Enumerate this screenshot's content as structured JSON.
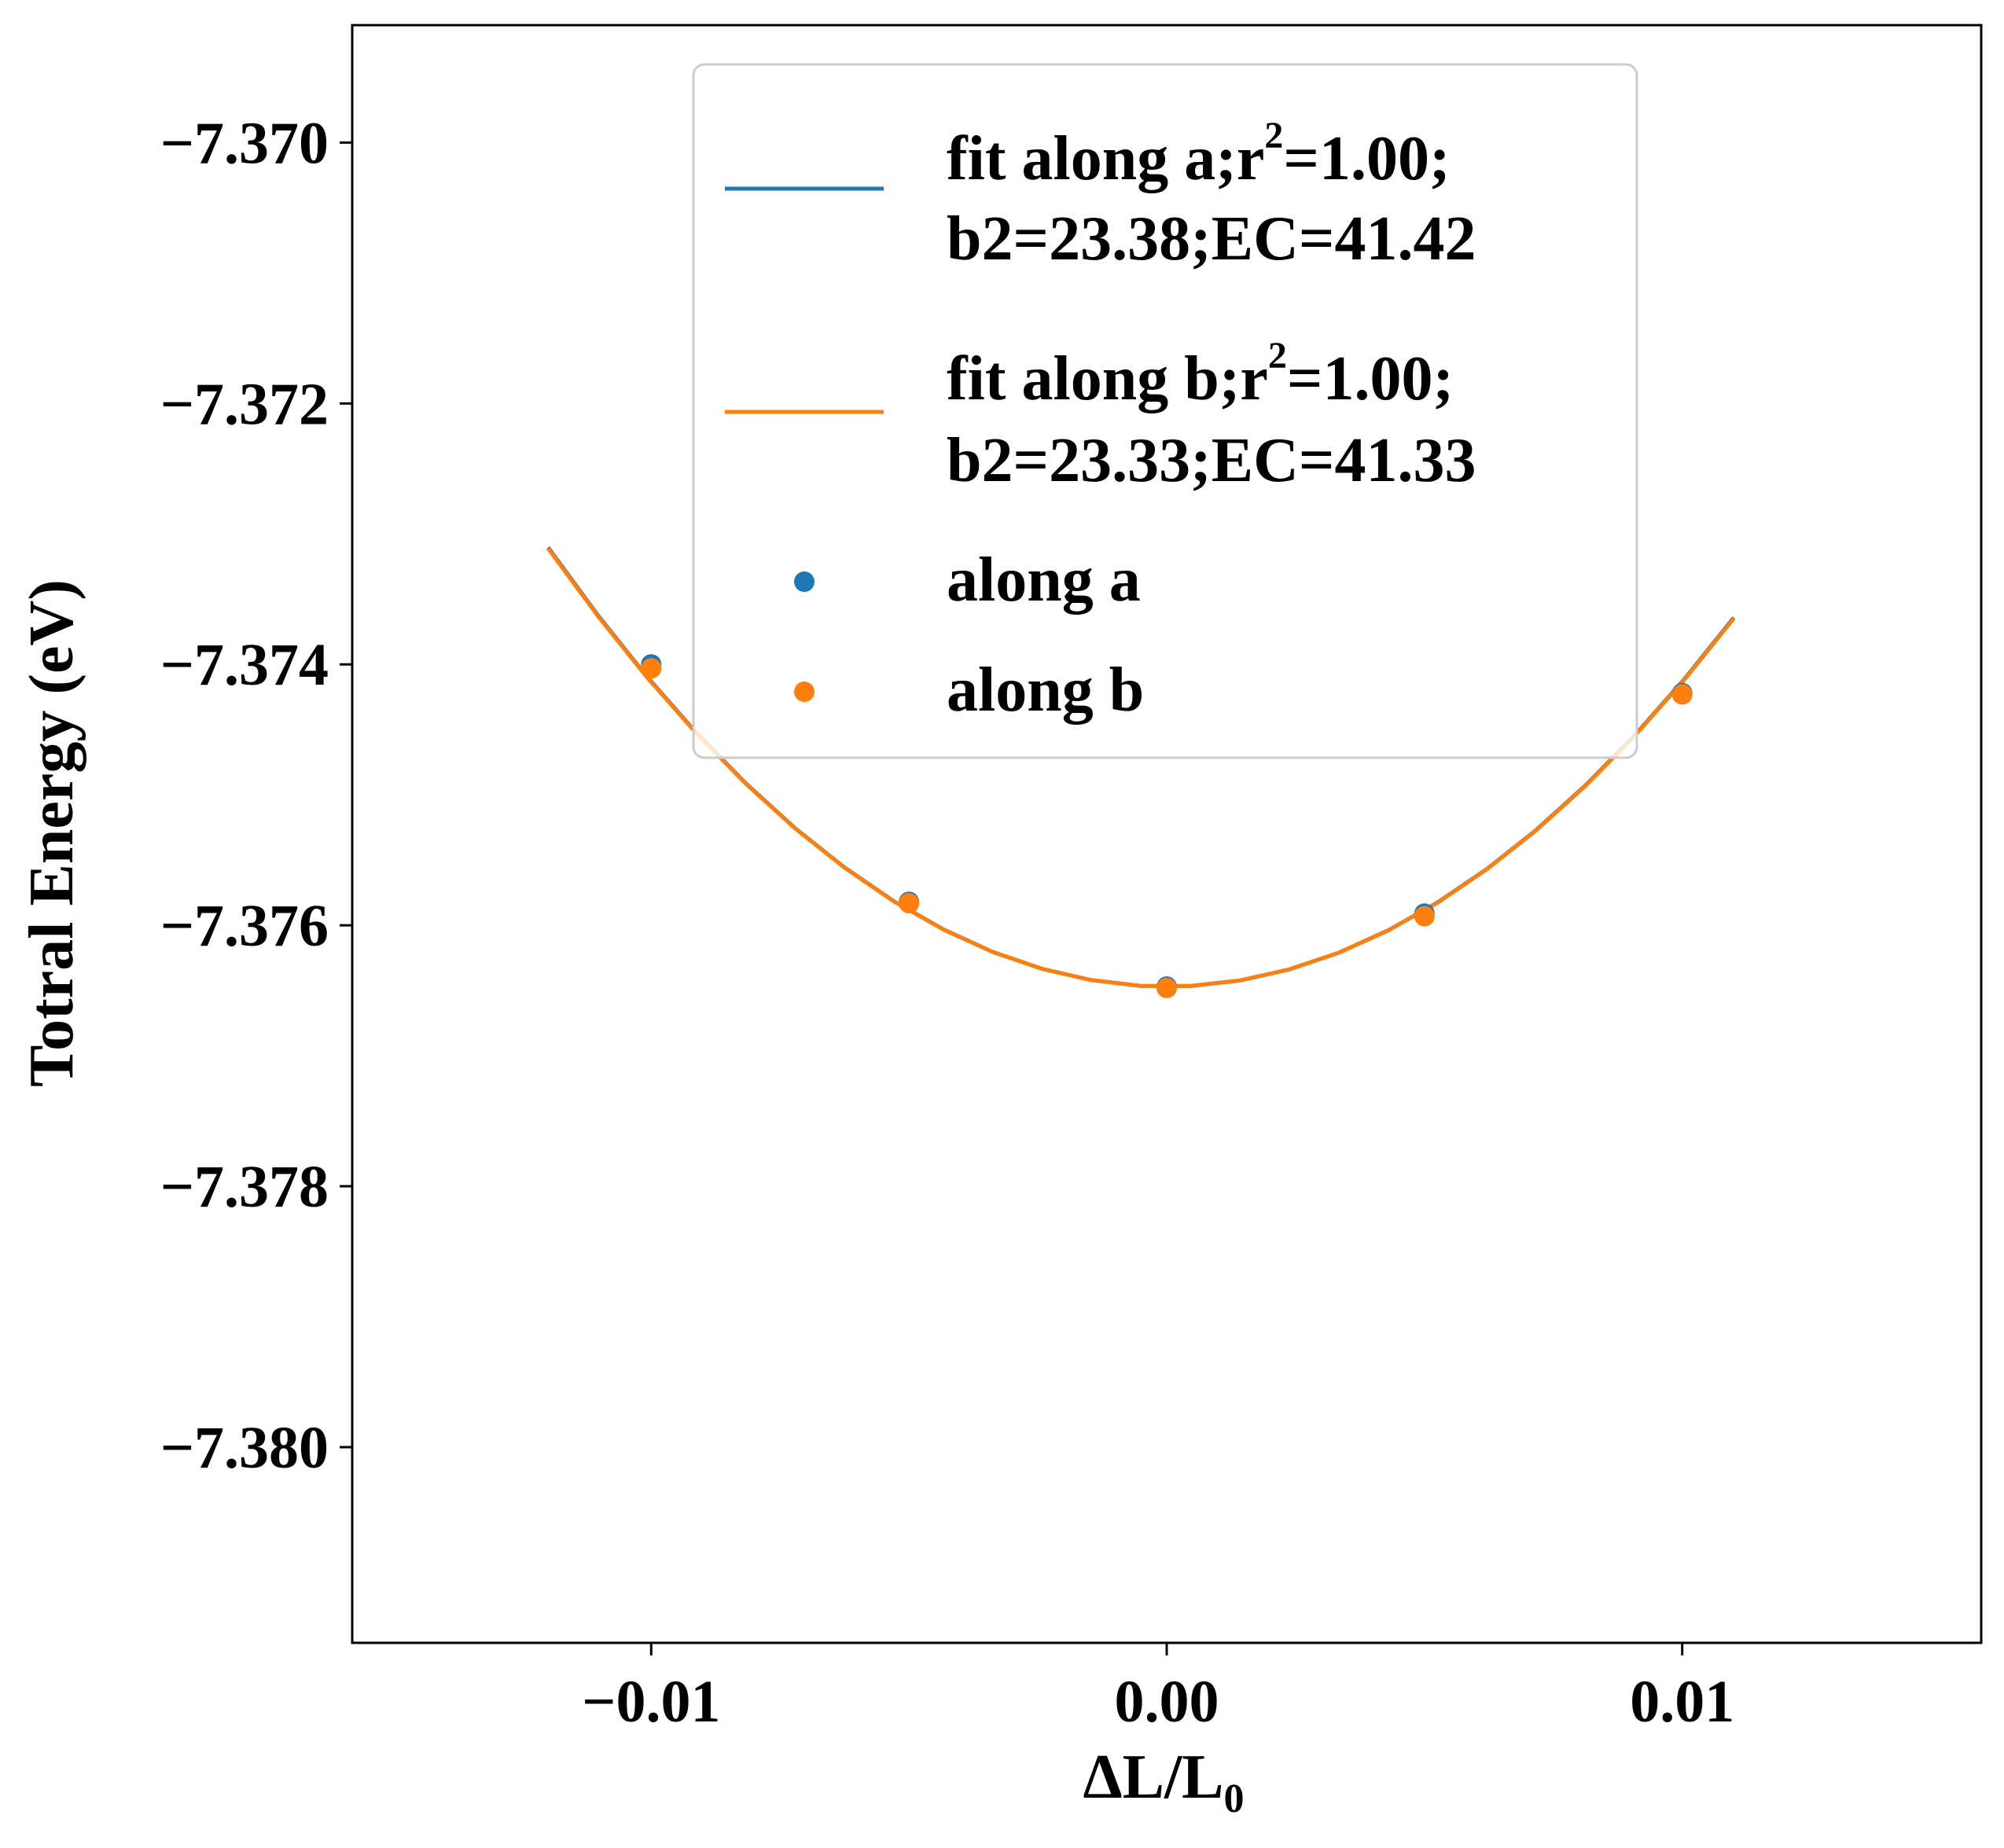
{
  "chart_data": {
    "type": "scatter",
    "xlabel": "ΔL/L",
    "xlabel_sub": "0",
    "ylabel": "Totral Energy (eV)",
    "xlim": [
      -0.0158,
      0.0158
    ],
    "ylim": [
      -7.3815,
      -7.3691
    ],
    "xticks": [
      -0.01,
      0.0,
      0.01
    ],
    "xtick_labels": [
      "−0.01",
      "0.00",
      "0.01"
    ],
    "yticks": [
      -7.37,
      -7.372,
      -7.374,
      -7.376,
      -7.378,
      -7.38
    ],
    "ytick_labels": [
      "−7.370",
      "−7.372",
      "−7.374",
      "−7.376",
      "−7.378",
      "−7.380"
    ],
    "grid": false,
    "legend_position": "top-right",
    "colors": {
      "a": "#1f77b4",
      "b": "#ff7f0e"
    },
    "fits": [
      {
        "name_line1": "fit along a;r",
        "name_sup": "2",
        "name_line1_rest": "=1.00;",
        "name_line2": "b2=23.38;EC=41.42",
        "color": "#1f77b4",
        "vertex_x": 0.0,
        "vertex_y": -7.37647,
        "coef": 23.38,
        "x_range": [
          -0.012,
          0.011
        ]
      },
      {
        "name_line1": "fit along b;r",
        "name_sup": "2",
        "name_line1_rest": "=1.00;",
        "name_line2": "b2=23.33;EC=41.33",
        "color": "#ff7f0e",
        "vertex_x": 0.0,
        "vertex_y": -7.37647,
        "coef": 23.33,
        "x_range": [
          -0.012,
          0.011
        ]
      }
    ],
    "series": [
      {
        "name": "along a",
        "color": "#1f77b4",
        "x": [
          -0.01,
          -0.005,
          0.0,
          0.005,
          0.01
        ],
        "y": [
          -7.374,
          -7.37582,
          -7.37647,
          -7.37591,
          -7.37422
        ]
      },
      {
        "name": "along b",
        "color": "#ff7f0e",
        "x": [
          -0.01,
          -0.005,
          0.0,
          0.005,
          0.01
        ],
        "y": [
          -7.37403,
          -7.37583,
          -7.37648,
          -7.37593,
          -7.37423
        ]
      }
    ]
  }
}
